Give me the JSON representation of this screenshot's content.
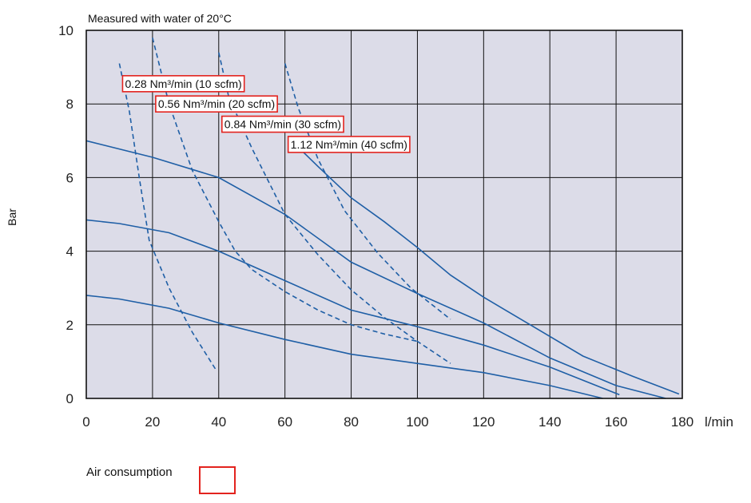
{
  "chart_data": {
    "type": "line",
    "title": "Measured with water of 20°C",
    "xlabel": "l/min",
    "ylabel": "Bar",
    "xlim": [
      0,
      180
    ],
    "ylim": [
      0,
      10
    ],
    "xticks": [
      0,
      20,
      40,
      60,
      80,
      100,
      120,
      140,
      160,
      180
    ],
    "yticks": [
      0,
      2,
      4,
      6,
      8,
      10
    ],
    "grid": true,
    "background_color": "#dcdce8",
    "curve_color": "#1f5fa6",
    "annotation_border_color": "#e3231e",
    "series": [
      {
        "style": "solid",
        "points": [
          [
            0,
            2.8
          ],
          [
            10,
            2.7
          ],
          [
            25,
            2.45
          ],
          [
            40,
            2.05
          ],
          [
            60,
            1.6
          ],
          [
            80,
            1.2
          ],
          [
            100,
            0.95
          ],
          [
            120,
            0.7
          ],
          [
            140,
            0.35
          ],
          [
            156,
            0
          ]
        ]
      },
      {
        "style": "solid",
        "points": [
          [
            0,
            4.85
          ],
          [
            10,
            4.75
          ],
          [
            25,
            4.5
          ],
          [
            40,
            4.0
          ],
          [
            60,
            3.2
          ],
          [
            80,
            2.4
          ],
          [
            100,
            1.95
          ],
          [
            120,
            1.45
          ],
          [
            140,
            0.85
          ],
          [
            161,
            0.1
          ]
        ]
      },
      {
        "style": "solid",
        "points": [
          [
            0,
            7.0
          ],
          [
            20,
            6.55
          ],
          [
            40,
            6.0
          ],
          [
            60,
            5.0
          ],
          [
            80,
            3.7
          ],
          [
            100,
            2.85
          ],
          [
            120,
            2.05
          ],
          [
            140,
            1.1
          ],
          [
            160,
            0.35
          ],
          [
            175,
            0
          ]
        ]
      },
      {
        "style": "solid",
        "points": [
          [
            62,
            7.0
          ],
          [
            70,
            6.3
          ],
          [
            80,
            5.45
          ],
          [
            90,
            4.8
          ],
          [
            100,
            4.1
          ],
          [
            110,
            3.35
          ],
          [
            120,
            2.75
          ],
          [
            135,
            1.95
          ],
          [
            150,
            1.15
          ],
          [
            165,
            0.6
          ],
          [
            179,
            0.12
          ]
        ]
      },
      {
        "style": "dashed",
        "points": [
          [
            10,
            9.1
          ],
          [
            13,
            7.8
          ],
          [
            16,
            6.0
          ],
          [
            19,
            4.3
          ],
          [
            25,
            3.0
          ],
          [
            32,
            1.8
          ],
          [
            39,
            0.8
          ]
        ]
      },
      {
        "style": "dashed",
        "points": [
          [
            20,
            9.8
          ],
          [
            25,
            8.0
          ],
          [
            32,
            6.2
          ],
          [
            40,
            4.8
          ],
          [
            45,
            4.0
          ],
          [
            50,
            3.5
          ],
          [
            60,
            2.9
          ],
          [
            70,
            2.4
          ],
          [
            80,
            2.0
          ],
          [
            90,
            1.75
          ],
          [
            100,
            1.55
          ]
        ]
      },
      {
        "style": "dashed",
        "points": [
          [
            40,
            9.4
          ],
          [
            43,
            8.2
          ],
          [
            50,
            6.8
          ],
          [
            60,
            5.0
          ],
          [
            70,
            3.9
          ],
          [
            80,
            2.95
          ],
          [
            90,
            2.2
          ],
          [
            100,
            1.55
          ],
          [
            110,
            0.95
          ]
        ]
      },
      {
        "style": "dashed",
        "points": [
          [
            60,
            9.1
          ],
          [
            64,
            7.9
          ],
          [
            70,
            6.5
          ],
          [
            78,
            5.1
          ],
          [
            88,
            3.95
          ],
          [
            98,
            3.0
          ],
          [
            110,
            2.15
          ]
        ]
      }
    ],
    "annotations": [
      {
        "text": "0.28 Nm³/min (10 scfm)",
        "x": 10,
        "y": 8.55
      },
      {
        "text": "0.56 Nm³/min (20 scfm)",
        "x": 20,
        "y": 8.0
      },
      {
        "text": "0.84 Nm³/min (30 scfm)",
        "x": 40,
        "y": 7.45
      },
      {
        "text": "1.12 Nm³/min (40 scfm)",
        "x": 60,
        "y": 6.9
      }
    ]
  },
  "legend": {
    "label": "Air consumption"
  }
}
